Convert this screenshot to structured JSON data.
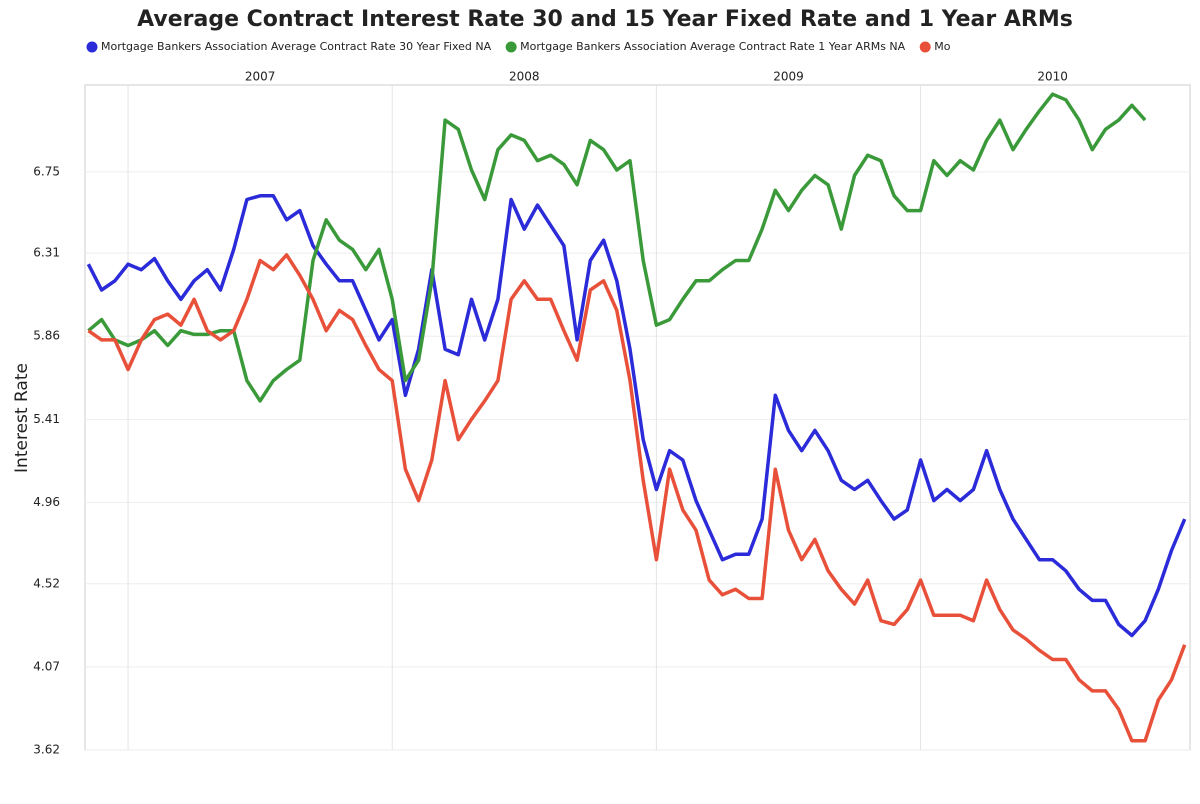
{
  "chart_data": {
    "type": "line",
    "title": "Average Contract Interest Rate 30 and 15 Year Fixed Rate and 1 Year ARMs",
    "y_label": "Interest Rate",
    "grid": true,
    "xlim": [
      2006.837,
      2011.02
    ],
    "xticks": [
      2007,
      2008,
      2009,
      2010
    ],
    "ylim": [
      3.62,
      7.22
    ],
    "yticks": [
      3.62,
      4.07,
      4.52,
      4.96,
      5.41,
      5.86,
      6.31,
      6.75
    ],
    "x": [
      2006.85,
      2006.9,
      2006.95,
      2007.0,
      2007.05,
      2007.1,
      2007.15,
      2007.2,
      2007.25,
      2007.3,
      2007.35,
      2007.4,
      2007.45,
      2007.5,
      2007.55,
      2007.6,
      2007.65,
      2007.7,
      2007.75,
      2007.8,
      2007.85,
      2007.9,
      2007.95,
      2008.0,
      2008.05,
      2008.1,
      2008.15,
      2008.2,
      2008.25,
      2008.3,
      2008.35,
      2008.4,
      2008.45,
      2008.5,
      2008.55,
      2008.6,
      2008.65,
      2008.7,
      2008.75,
      2008.8,
      2008.85,
      2008.9,
      2008.95,
      2009.0,
      2009.05,
      2009.1,
      2009.15,
      2009.2,
      2009.25,
      2009.3,
      2009.35,
      2009.4,
      2009.45,
      2009.5,
      2009.55,
      2009.6,
      2009.65,
      2009.7,
      2009.75,
      2009.8,
      2009.85,
      2009.9,
      2009.95,
      2010.0,
      2010.05,
      2010.1,
      2010.15,
      2010.2,
      2010.25,
      2010.3,
      2010.35,
      2010.4,
      2010.45,
      2010.5,
      2010.55,
      2010.6,
      2010.65,
      2010.7,
      2010.75,
      2010.8,
      2010.85,
      2010.9,
      2010.95,
      2011.0
    ],
    "series": [
      {
        "name": "Mortgage Bankers Association Average Contract Rate 30 Year Fixed NA",
        "color": "#2b2bd9",
        "values": [
          6.25,
          6.11,
          6.16,
          6.25,
          6.22,
          6.28,
          6.16,
          6.06,
          6.16,
          6.22,
          6.11,
          6.33,
          6.6,
          6.62,
          6.62,
          6.49,
          6.54,
          6.35,
          6.25,
          6.16,
          6.16,
          6.0,
          5.84,
          5.95,
          5.54,
          5.79,
          6.22,
          5.79,
          5.76,
          6.06,
          5.84,
          6.06,
          6.6,
          6.44,
          6.57,
          6.46,
          6.35,
          5.84,
          6.27,
          6.38,
          6.16,
          5.79,
          5.3,
          5.03,
          5.24,
          5.19,
          4.97,
          4.81,
          4.65,
          4.68,
          4.68,
          4.87,
          5.54,
          5.35,
          5.24,
          5.35,
          5.24,
          5.08,
          5.03,
          5.08,
          4.97,
          4.87,
          4.92,
          5.19,
          4.97,
          5.03,
          4.97,
          5.03,
          5.24,
          5.03,
          4.87,
          4.76,
          4.65,
          4.65,
          4.59,
          4.49,
          4.43,
          4.43,
          4.3,
          4.24,
          4.32,
          4.49,
          4.7,
          4.87
        ]
      },
      {
        "name": "Mortgage Bankers Association Average Contract Rate 1 Year ARMs NA",
        "color": "#3a9a3a",
        "values": [
          5.89,
          5.95,
          5.84,
          5.81,
          5.84,
          5.89,
          5.81,
          5.89,
          5.87,
          5.87,
          5.89,
          5.89,
          5.62,
          5.51,
          5.62,
          5.68,
          5.73,
          6.27,
          6.49,
          6.38,
          6.33,
          6.22,
          6.33,
          6.06,
          5.62,
          5.73,
          6.16,
          7.03,
          6.98,
          6.76,
          6.6,
          6.87,
          6.95,
          6.92,
          6.81,
          6.84,
          6.79,
          6.68,
          6.92,
          6.87,
          6.76,
          6.81,
          6.27,
          5.92,
          5.95,
          6.06,
          6.16,
          6.16,
          6.22,
          6.27,
          6.27,
          6.44,
          6.65,
          6.54,
          6.65,
          6.73,
          6.68,
          6.44,
          6.73,
          6.84,
          6.81,
          6.62,
          6.54,
          6.54,
          6.81,
          6.73,
          6.81,
          6.76,
          6.92,
          7.03,
          6.87,
          6.98,
          7.08,
          7.17,
          7.14,
          7.03,
          6.87,
          6.98,
          7.03,
          7.11,
          7.03,
          null,
          null,
          null
        ]
      },
      {
        "name": "Mo",
        "color": "#e8503a",
        "values": [
          5.89,
          5.84,
          5.84,
          5.68,
          5.84,
          5.95,
          5.98,
          5.92,
          6.06,
          5.89,
          5.84,
          5.89,
          6.06,
          6.27,
          6.22,
          6.3,
          6.19,
          6.06,
          5.89,
          6.0,
          5.95,
          5.81,
          5.68,
          5.62,
          5.14,
          4.97,
          5.19,
          5.62,
          5.3,
          5.41,
          5.51,
          5.62,
          6.06,
          6.16,
          6.06,
          6.06,
          5.89,
          5.73,
          6.11,
          6.16,
          6.0,
          5.62,
          5.08,
          4.65,
          5.14,
          4.92,
          4.81,
          4.54,
          4.46,
          4.49,
          4.44,
          4.44,
          5.14,
          4.81,
          4.65,
          4.76,
          4.59,
          4.49,
          4.41,
          4.54,
          4.32,
          4.3,
          4.38,
          4.54,
          4.35,
          4.35,
          4.35,
          4.32,
          4.54,
          4.38,
          4.27,
          4.22,
          4.16,
          4.11,
          4.11,
          4.0,
          3.94,
          3.94,
          3.84,
          3.67,
          3.67,
          3.89,
          4.0,
          4.19
        ]
      }
    ]
  }
}
